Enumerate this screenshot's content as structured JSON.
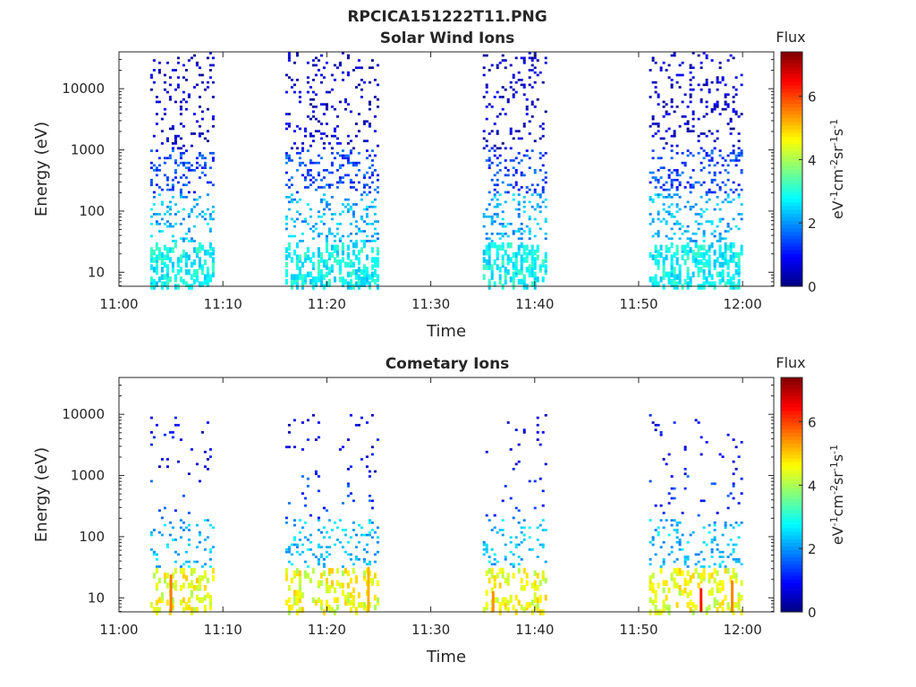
{
  "figure": {
    "title": "RPCICA151222T11.PNG"
  },
  "chart_data": [
    {
      "type": "heatmap",
      "title": "Solar Wind Ions",
      "xlabel": "Time",
      "ylabel": "Energy (eV)",
      "y_scale": "log",
      "xlim": [
        "11:00",
        "12:03"
      ],
      "ylim": [
        5.9,
        40000
      ],
      "x_ticks": [
        "11:00",
        "11:10",
        "11:20",
        "11:30",
        "11:40",
        "11:50",
        "12:00"
      ],
      "y_ticks": [
        10,
        100,
        1000,
        10000
      ],
      "y_tick_labels": [
        "10",
        "100",
        "1000",
        "10000"
      ],
      "colorbar": {
        "title": "Flux",
        "label": "eV⁻¹cm⁻²sr⁻¹s⁻¹",
        "range": [
          0,
          7.4
        ],
        "ticks": [
          0,
          2,
          4,
          6
        ],
        "tick_labels": [
          "0",
          "2",
          "4",
          "6"
        ],
        "colormap": "jet"
      },
      "data_intervals": [
        {
          "start": "11:03",
          "end": "11:09"
        },
        {
          "start": "11:16",
          "end": "11:25"
        },
        {
          "start": "11:35",
          "end": "11:41"
        },
        {
          "start": "11:51",
          "end": "12:00"
        }
      ],
      "typical_flux": [
        {
          "energy_range": [
            6,
            30
          ],
          "flux": 2.8
        },
        {
          "energy_range": [
            30,
            200
          ],
          "flux": 2.2
        },
        {
          "energy_range": [
            200,
            1000
          ],
          "flux": 1.4
        },
        {
          "energy_range": [
            1000,
            40000
          ],
          "flux": 0.5
        }
      ],
      "grid": false
    },
    {
      "type": "heatmap",
      "title": "Cometary Ions",
      "xlabel": "Time",
      "ylabel": "Energy (eV)",
      "y_scale": "log",
      "xlim": [
        "11:00",
        "12:03"
      ],
      "ylim": [
        5.9,
        40000
      ],
      "x_ticks": [
        "11:00",
        "11:10",
        "11:20",
        "11:30",
        "11:40",
        "11:50",
        "12:00"
      ],
      "y_ticks": [
        10,
        100,
        1000,
        10000
      ],
      "y_tick_labels": [
        "10",
        "100",
        "1000",
        "10000"
      ],
      "colorbar": {
        "title": "Flux",
        "label": "eV⁻¹cm⁻²sr⁻¹s⁻¹",
        "range": [
          0,
          7.4
        ],
        "ticks": [
          0,
          2,
          4,
          6
        ],
        "tick_labels": [
          "0",
          "2",
          "4",
          "6"
        ],
        "colormap": "jet"
      },
      "data_intervals": [
        {
          "start": "11:03",
          "end": "11:09"
        },
        {
          "start": "11:16",
          "end": "11:25"
        },
        {
          "start": "11:35",
          "end": "11:41"
        },
        {
          "start": "11:51",
          "end": "12:00"
        }
      ],
      "typical_flux": [
        {
          "energy_range": [
            6,
            30
          ],
          "flux": 4.5
        },
        {
          "energy_range": [
            30,
            200
          ],
          "flux": 2.3
        },
        {
          "energy_range": [
            200,
            1000
          ],
          "flux": 1.3
        },
        {
          "energy_range": [
            1000,
            10000
          ],
          "flux": 0.8
        }
      ],
      "peak_flux": [
        {
          "time": "11:05",
          "energy": 15,
          "flux": 5.6
        },
        {
          "time": "11:24",
          "energy": 20,
          "flux": 5.2
        },
        {
          "time": "11:36",
          "energy": 8,
          "flux": 5.4
        },
        {
          "time": "11:56",
          "energy": 9,
          "flux": 6.3
        },
        {
          "time": "11:59",
          "energy": 12,
          "flux": 5.5
        }
      ],
      "grid": false
    }
  ]
}
